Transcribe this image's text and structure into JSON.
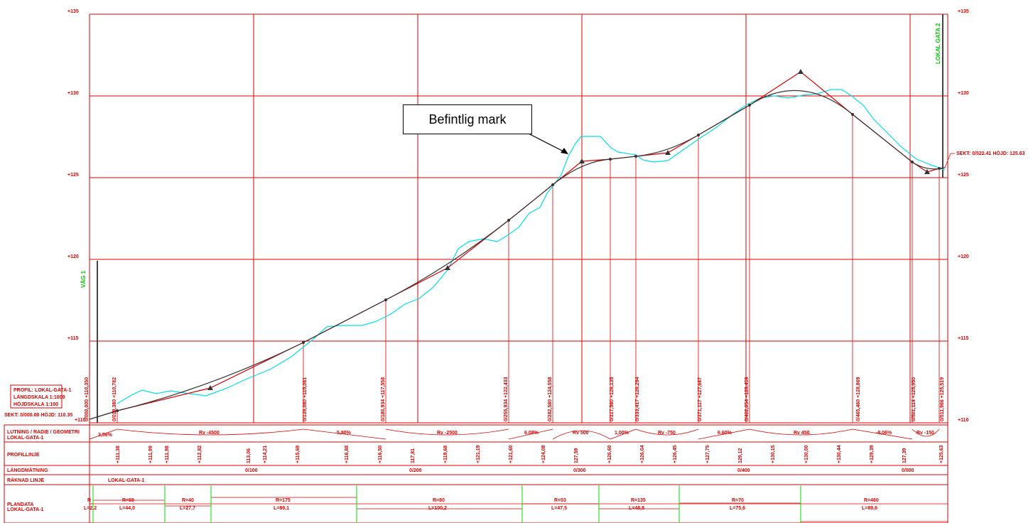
{
  "elevation_labels": [
    "+135",
    "+130",
    "+125",
    "+120",
    "+115",
    "+110"
  ],
  "callout": {
    "text": "Befintlig mark"
  },
  "profile_info": {
    "lines": [
      "PROFIL: LOKAL-GATA-1",
      "LÄNGDSKALA 1:1000",
      "HÖJDSKALA 1:100"
    ],
    "start_section": "SEKT: 0/000.00 HÖJD: 110.35",
    "end_section": "SEKT: 0/522.41 HÖJD: 125.63"
  },
  "road_labels": {
    "left": "VÄG 1",
    "right": "LOKAL GATA 2"
  },
  "row_headers": {
    "geometry": "LUTNING / RADIE / GEOMETRI",
    "geometry_sub": "LOKAL-GATA-1",
    "profile": "PROFILLINJE",
    "chainage": "LÄNGDMÄTNING",
    "line": "RÄKNAD LINJE",
    "plan": "PLANDATA",
    "plan_sub": "LOKAL-GATA-1"
  },
  "line_name": "LOKAL-GATA-1",
  "vertical_labels": [
    "0/000,000 +110,350",
    "0/019,380 +110,782",
    "0/139,080 +115,081",
    "0/180,934 +117,558",
    "0/255,934 +122,433",
    "0/282,580 +124,558",
    "0/317,580 +126,135",
    "0/333,417 +126,294",
    "0/371,117 +127,687",
    "0/402,054 +129,459",
    "0/465,460 +128,869",
    "0/501,114 +125,950",
    "0/511,966 +125,519"
  ],
  "geometry_cells": [
    "3,56%",
    "Rv -4500",
    "5,80%",
    "Rv -2500",
    "6,08%",
    "Rv 500",
    "1,00%",
    "Rv -750",
    "6,60%",
    "Rv 450",
    "-8,06%",
    "Rv -150"
  ],
  "profile_values": [
    "+111,38",
    "+111,99",
    "+111,98",
    "+112,82",
    "113,06",
    "+114,21",
    "+115,69",
    "+116,88",
    "+116,50",
    "117,81",
    "+119,68",
    "+121,19",
    "+121,60",
    "+124,08",
    "127,59",
    "+126,60",
    "+126,04",
    "+126,45",
    "+127,75",
    "129,12",
    "+130,15",
    "+130,00",
    "+130,44",
    "+129,39",
    "127,39",
    "+125,63"
  ],
  "chainage_labels": [
    "0/100",
    "0/200",
    "0/300",
    "0/400",
    "0/500"
  ],
  "plan_cells": [
    {
      "r": "R",
      "l": "L=2,2"
    },
    {
      "r": "R=58",
      "l": "L=44,0"
    },
    {
      "r": "R=40",
      "l": "L=27,7"
    },
    {
      "r": "R=175",
      "l": "L=89,1"
    },
    {
      "r": "R=80",
      "l": "L=100,2"
    },
    {
      "r": "R=53",
      "l": "L=47,5"
    },
    {
      "r": "R=135",
      "l": "L=48,8"
    },
    {
      "r": "R=70",
      "l": "L=75,6"
    },
    {
      "r": "R=460",
      "l": "L=89,6"
    }
  ]
}
